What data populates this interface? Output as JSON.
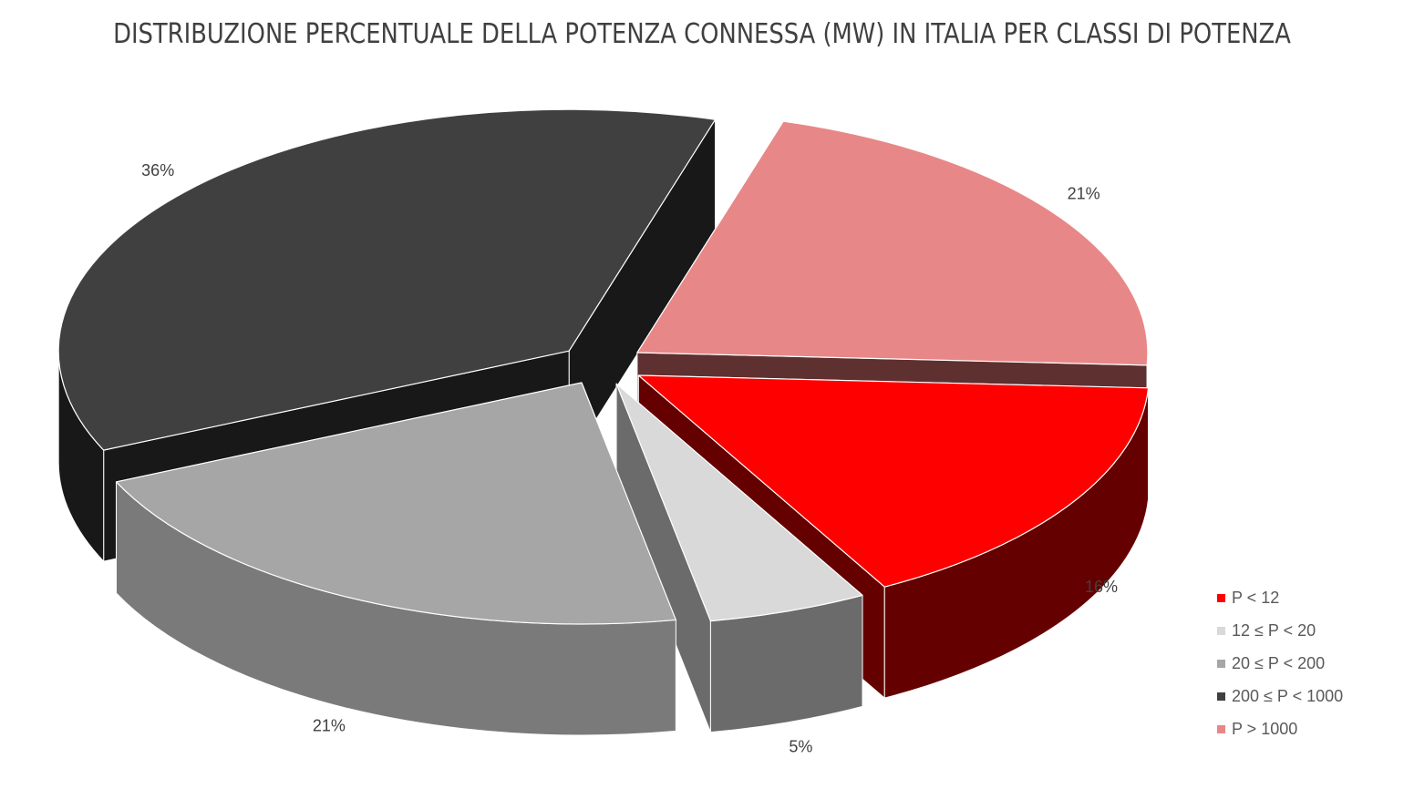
{
  "chart_data": {
    "type": "pie",
    "title": "DISTRIBUZIONE PERCENTUALE DELLA POTENZA CONNESSA (MW) IN ITALIA PER CLASSI DI POTENZA",
    "three_d": true,
    "exploded": true,
    "legend_position": "bottom-right",
    "slices": [
      {
        "name": "P < 12",
        "value": 16,
        "label": "16%",
        "color": "#ff0000",
        "side_color": "#650000"
      },
      {
        "name": "12 ≤ P < 20",
        "value": 5,
        "label": "5%",
        "color": "#d9d9d9",
        "side_color": "#6b6b6b"
      },
      {
        "name": "20 ≤ P < 200",
        "value": 21,
        "label": "21%",
        "color": "#a6a6a6",
        "side_color": "#7a7a7a"
      },
      {
        "name": "200 ≤ P < 1000",
        "value": 36,
        "label": "36%",
        "color": "#404040",
        "side_color": "#181818"
      },
      {
        "name": "P > 1000",
        "value": 21,
        "label": "21%",
        "color": "#e88787",
        "side_color": "#5e3030"
      }
    ]
  }
}
